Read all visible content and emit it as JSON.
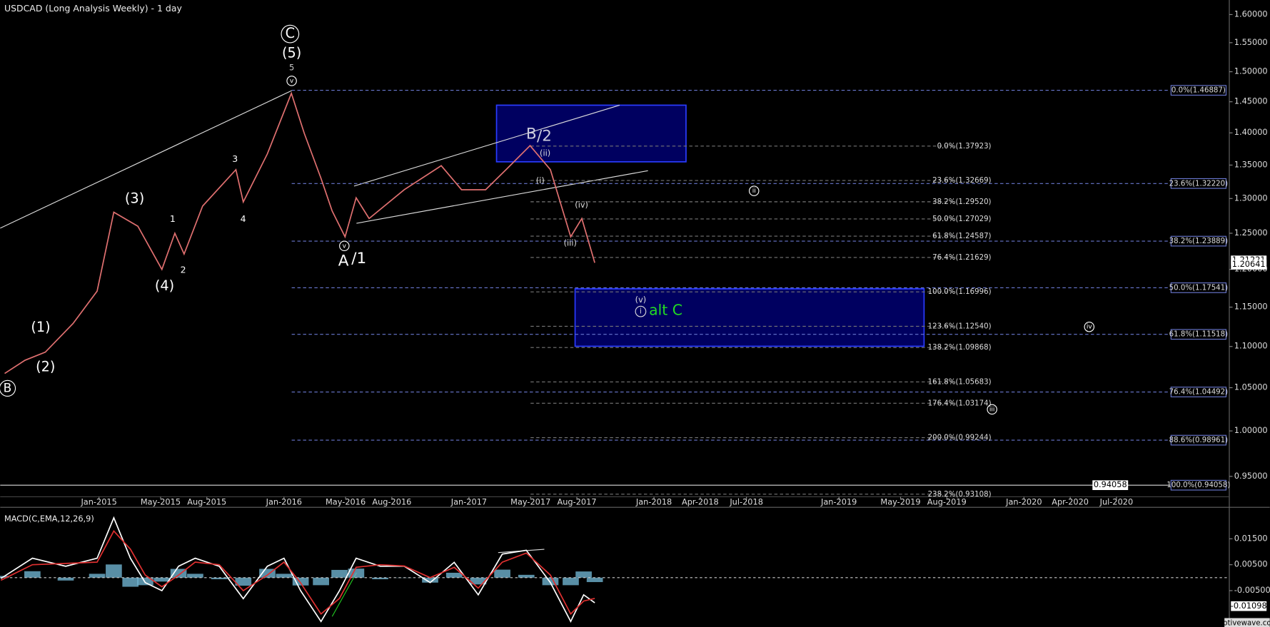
{
  "chart_data": [
    {
      "type": "line",
      "title": "USDCAD (Long  Analysis Weekly) - 1 day",
      "log_scale": true,
      "xlim": [
        2014.466,
        2021.11
      ],
      "ylim": [
        0.925,
        1.62
      ],
      "xticks": [
        {
          "value": 2015.0,
          "label": "Jan-2015"
        },
        {
          "value": 2015.333,
          "label": "May-2015"
        },
        {
          "value": 2015.583,
          "label": "Aug-2015"
        },
        {
          "value": 2016.0,
          "label": "Jan-2016"
        },
        {
          "value": 2016.333,
          "label": "May-2016"
        },
        {
          "value": 2016.583,
          "label": "Aug-2016"
        },
        {
          "value": 2017.0,
          "label": "Jan-2017"
        },
        {
          "value": 2017.333,
          "label": "May-2017"
        },
        {
          "value": 2017.583,
          "label": "Aug-2017"
        },
        {
          "value": 2018.0,
          "label": "Jan-2018"
        },
        {
          "value": 2018.25,
          "label": "Apr-2018"
        },
        {
          "value": 2018.5,
          "label": "Jul-2018"
        },
        {
          "value": 2019.0,
          "label": "Jan-2019"
        },
        {
          "value": 2019.333,
          "label": "May-2019"
        },
        {
          "value": 2019.583,
          "label": "Aug-2019"
        },
        {
          "value": 2020.0,
          "label": "Jan-2020"
        },
        {
          "value": 2020.25,
          "label": "Apr-2020"
        },
        {
          "value": 2020.5,
          "label": "Jul-2020"
        }
      ],
      "yticks": [
        {
          "value": 0.95,
          "label": "0.95000"
        },
        {
          "value": 1.0,
          "label": "1.00000"
        },
        {
          "value": 1.05,
          "label": "1.05000"
        },
        {
          "value": 1.1,
          "label": "1.10000"
        },
        {
          "value": 1.15,
          "label": "1.15000"
        },
        {
          "value": 1.2,
          "label": "1.20000"
        },
        {
          "value": 1.25,
          "label": "1.25000"
        },
        {
          "value": 1.3,
          "label": "1.30000"
        },
        {
          "value": 1.35,
          "label": "1.35000"
        },
        {
          "value": 1.4,
          "label": "1.40000"
        },
        {
          "value": 1.45,
          "label": "1.45000"
        },
        {
          "value": 1.5,
          "label": "1.50000"
        },
        {
          "value": 1.55,
          "label": "1.55000"
        },
        {
          "value": 1.6,
          "label": "1.60000"
        }
      ],
      "x": [
        2014.49,
        2014.6,
        2014.71,
        2014.86,
        2014.99,
        2015.08,
        2015.21,
        2015.34,
        2015.41,
        2015.46,
        2015.56,
        2015.74,
        2015.78,
        2015.91,
        2016.04,
        2016.11,
        2016.2,
        2016.26,
        2016.33,
        2016.39,
        2016.46,
        2016.65,
        2016.85,
        2016.96,
        2017.09,
        2017.2,
        2017.33,
        2017.44,
        2017.55,
        2017.61,
        2017.68
      ],
      "series": [
        {
          "color": "#e07070",
          "values": [
            1.067,
            1.083,
            1.093,
            1.129,
            1.171,
            1.28,
            1.26,
            1.2,
            1.25,
            1.221,
            1.289,
            1.343,
            1.295,
            1.367,
            1.464,
            1.399,
            1.33,
            1.282,
            1.245,
            1.301,
            1.271,
            1.313,
            1.349,
            1.313,
            1.313,
            1.343,
            1.38,
            1.343,
            1.245,
            1.271,
            1.209
          ]
        }
      ],
      "levels": [
        {
          "value": 1.46887,
          "label": "0.0%(1.46887)"
        },
        {
          "value": 1.3222,
          "label": "23.6%(1.32220)"
        },
        {
          "value": 1.23889,
          "label": "38.2%(1.23889)"
        },
        {
          "value": 1.17541,
          "label": "50.0%(1.17541)"
        },
        {
          "value": 1.11518,
          "label": "61.8%(1.11518)"
        },
        {
          "value": 1.04492,
          "label": "76.4%(1.04492)"
        },
        {
          "value": 0.98961,
          "label": "88.6%(0.98961)"
        },
        {
          "value": 0.94058,
          "label": "100.0%(0.94058)"
        }
      ],
      "sublevels": [
        {
          "value": 1.37923,
          "label": "0.0%(1.37923)"
        },
        {
          "value": 1.32669,
          "label": "23.6%(1.32669)"
        },
        {
          "value": 1.2952,
          "label": "38.2%(1.29520)"
        },
        {
          "value": 1.27029,
          "label": "50.0%(1.27029)"
        },
        {
          "value": 1.24587,
          "label": "61.8%(1.24587)"
        },
        {
          "value": 1.21629,
          "label": "76.4%(1.21629)"
        },
        {
          "value": 1.16996,
          "label": "100.0%(1.16996)"
        },
        {
          "value": 1.1254,
          "label": "123.6%(1.12540)"
        },
        {
          "value": 1.09868,
          "label": "138.2%(1.09868)"
        },
        {
          "value": 1.05683,
          "label": "161.8%(1.05683)"
        },
        {
          "value": 1.03174,
          "label": "176.4%(1.03174)"
        },
        {
          "value": 0.99244,
          "label": "200.0%(0.99244)"
        },
        {
          "value": 0.93108,
          "label": "238.2%(0.93108)"
        }
      ],
      "price_labels": [
        {
          "value": 1.21221,
          "label": "1.21221"
        },
        {
          "value": 1.20641,
          "label": "1.20641"
        },
        {
          "value": 0.94058,
          "label": "0.94058"
        }
      ],
      "annotations": [
        "C",
        "(5)",
        "5",
        "v",
        "(3)",
        "(4)",
        "(1)",
        "(2)",
        "B",
        "1",
        "2",
        "3",
        "4",
        "A",
        "/1",
        "B",
        "/2",
        "(ii)",
        "(i)",
        "(iv)",
        "(iii)",
        "(v)",
        "i",
        "alt C",
        "ii",
        "iii",
        "iv",
        "v"
      ],
      "footer": "motivewave.com"
    },
    {
      "type": "line",
      "title": "MACD(C,EMA,12,26,9)",
      "xlim": [
        2014.466,
        2021.11
      ],
      "ylim": [
        -0.0184,
        0.0256
      ],
      "yticks": [
        {
          "value": 0.015,
          "label": "0.01500"
        },
        {
          "value": 0.005,
          "label": "0.00500"
        },
        {
          "value": -0.005,
          "label": "-0.00500"
        }
      ],
      "x": [
        2014.47,
        2014.64,
        2014.82,
        2014.99,
        2015.08,
        2015.17,
        2015.25,
        2015.34,
        2015.43,
        2015.52,
        2015.65,
        2015.78,
        2015.91,
        2016.0,
        2016.09,
        2016.2,
        2016.3,
        2016.39,
        2016.52,
        2016.65,
        2016.79,
        2016.92,
        2017.05,
        2017.18,
        2017.31,
        2017.44,
        2017.55,
        2017.62,
        2017.68
      ],
      "series": [
        {
          "color": "#ffffff",
          "values": [
            -0.0003,
            0.0075,
            0.0044,
            0.0075,
            0.0231,
            0.0075,
            -0.0019,
            -0.005,
            0.0044,
            0.0075,
            0.0044,
            -0.0081,
            0.0044,
            0.0075,
            -0.005,
            -0.0169,
            -0.005,
            0.0075,
            0.0044,
            0.0044,
            -0.0019,
            0.0059,
            -0.0066,
            0.0091,
            0.0106,
            -0.0019,
            -0.0169,
            -0.0066,
            -0.0097
          ]
        },
        {
          "color": "#e03030",
          "values": [
            -0.001,
            0.005,
            0.0055,
            0.006,
            0.018,
            0.011,
            0.001,
            -0.0035,
            0.001,
            0.006,
            0.005,
            -0.005,
            0.001,
            0.006,
            -0.002,
            -0.014,
            -0.008,
            0.004,
            0.005,
            0.0045,
            0,
            0.004,
            -0.004,
            0.006,
            0.0095,
            0.001,
            -0.014,
            -0.009,
            -0.008
          ]
        }
      ],
      "histogram": {
        "color": "#6fb3cf",
        "values": [
          0.0007,
          0.0025,
          -0.0011,
          0.0015,
          0.0051,
          -0.0035,
          -0.0029,
          -0.0015,
          0.0034,
          0.0015,
          -0.0006,
          -0.0031,
          0.0034,
          0.0015,
          -0.003,
          -0.0029,
          0.003,
          0.0035,
          -0.0006,
          -0.0001,
          -0.0019,
          0.0019,
          -0.0026,
          0.0031,
          0.0011,
          -0.0029,
          -0.0029,
          0.0024,
          -0.0017
        ]
      },
      "price_labels": [
        {
          "value": -0.01098,
          "label": "-0.01098"
        }
      ]
    }
  ]
}
